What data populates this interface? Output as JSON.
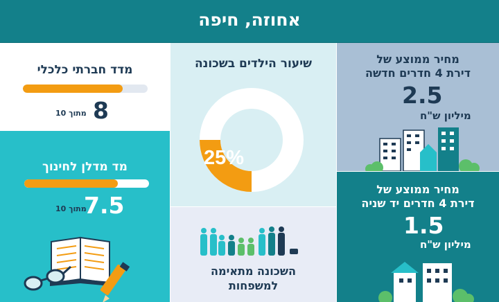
{
  "header": {
    "title": "אחוזה, חיפה"
  },
  "socio": {
    "title": "מדד חברתי כלכלי",
    "score": "8",
    "of": "מתוך 10",
    "fraction": 0.8
  },
  "education": {
    "title": "מד מדלן לחינוך",
    "score": "7.5",
    "of": "מתוך 10",
    "fraction": 0.75
  },
  "children": {
    "title": "שיעור הילדים בשכונה",
    "percent_label": "25%",
    "fraction": 0.25
  },
  "families": {
    "line1": "השכונה מתאימה",
    "line2": "למשפחות"
  },
  "new_apartment": {
    "line1": "מחיר ממוצע של",
    "line2": "דירת 4 חדרים חדשה",
    "price": "2.5",
    "unit": "מיליון ש\"ח"
  },
  "used_apartment": {
    "line1": "מחיר ממוצע של",
    "line2": "דירת 4 חדרים יד שניה",
    "price": "1.5",
    "unit": "מיליון ש\"ח"
  },
  "colors": {
    "teal_dark": "#13808a",
    "teal_light": "#27bfc9",
    "orange": "#f39c12",
    "pale_blue": "#d9eff3",
    "lavender": "#e8ecf6",
    "gray_blue": "#a9bfd5",
    "navy": "#1e3a54"
  }
}
